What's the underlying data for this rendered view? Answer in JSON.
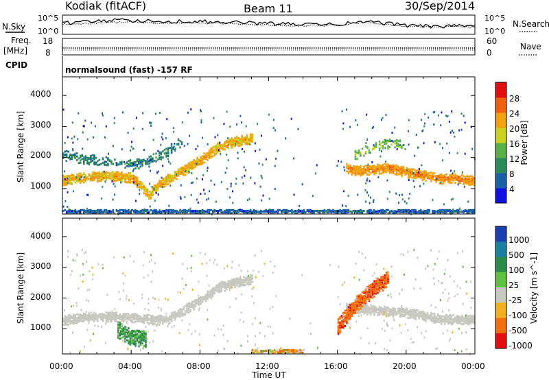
{
  "header": {
    "station": "Kodiak (fitACF)",
    "beam": "Beam 11",
    "date": "30/Sep/2014"
  },
  "summary_panels": {
    "nsky_label": "N.Sky",
    "nsearch_label": "N.Search",
    "noise_ticks": [
      "10^5",
      "10^0"
    ],
    "freq_label_1": "Freq.",
    "freq_label_2": "[MHz]",
    "freq_ticks": [
      "18",
      "8"
    ],
    "nave_label": "Nave",
    "nave_ticks": [
      "60",
      "0"
    ],
    "cpid_label": "CPID",
    "cpid_value": "normalsound (fast) -157 RF"
  },
  "axes": {
    "xlabel": "Time UT",
    "x_ticks": [
      "00:00",
      "04:00",
      "08:00",
      "12:00",
      "16:00",
      "20:00",
      "00:00"
    ],
    "ylabel": "Slant Range [km]",
    "y_ticks": [
      "1000",
      "2000",
      "3000",
      "4000"
    ]
  },
  "colorbars": {
    "power": {
      "label": "Power [dB]",
      "ticks": [
        "4",
        "8",
        "12",
        "16",
        "20",
        "24",
        "28"
      ],
      "colors": [
        "#1010e0",
        "#1a5fa8",
        "#2a8a5a",
        "#58b048",
        "#c8d020",
        "#f0a010",
        "#f06010",
        "#e01010"
      ]
    },
    "velocity": {
      "label": "Velocity [m s^-1]",
      "ticks": [
        "1000",
        "500",
        "100",
        "25",
        "-25",
        "-100",
        "-500",
        "-1000"
      ],
      "colors": [
        "#1a3fb0",
        "#1a7fa0",
        "#2a8a4a",
        "#60c040",
        "#c8c8c0",
        "#f0b020",
        "#f07010",
        "#e01010"
      ]
    }
  },
  "chart_data": [
    {
      "type": "line",
      "title": "Kodiak (fitACF) Beam 11 30/Sep/2014",
      "name": "noise",
      "x": [
        0,
        2,
        4,
        6,
        8,
        10,
        12,
        14,
        16,
        17,
        18,
        20,
        22,
        24
      ],
      "series": [
        {
          "name": "N.Sky",
          "values": [
            3.0,
            3.6,
            3.8,
            3.5,
            3.4,
            3.2,
            2.8,
            2.6,
            2.5,
            3.2,
            3.4,
            2.2,
            2.0,
            2.0
          ]
        },
        {
          "name": "N.Search",
          "values": [
            2.6,
            3.0,
            3.3,
            3.0,
            3.0,
            2.8,
            2.4,
            2.2,
            2.3,
            3.0,
            3.0,
            2.0,
            1.8,
            1.8
          ]
        }
      ],
      "xlim": [
        0,
        24
      ],
      "ylim": [
        0,
        5
      ]
    },
    {
      "type": "line",
      "name": "frequency-nave",
      "x": [
        0,
        24
      ],
      "series": [
        {
          "name": "Freq.",
          "values": [
            10.5,
            10.5
          ]
        },
        {
          "name": "Nave",
          "values": [
            12,
            12
          ]
        }
      ]
    },
    {
      "type": "heatmap",
      "name": "power",
      "xlabel": "Time UT",
      "ylabel": "Slant Range [km]",
      "xlim": [
        0,
        24
      ],
      "ylim": [
        180,
        4600
      ],
      "zlabel": "Power [dB]",
      "zlim": [
        0,
        30
      ],
      "features": [
        {
          "name": "main-band",
          "x": [
            0,
            1,
            2,
            3,
            4,
            4.5,
            5,
            5.5,
            6,
            7,
            8,
            9,
            10,
            11
          ],
          "y": [
            1300,
            1380,
            1420,
            1430,
            1380,
            1150,
            820,
            1100,
            1300,
            1600,
            1950,
            2350,
            2550,
            2650
          ],
          "value": 20
        },
        {
          "name": "upper-band",
          "x": [
            0,
            1,
            2,
            3,
            4,
            5,
            6,
            7
          ],
          "y": [
            2150,
            2000,
            1950,
            1850,
            1800,
            1900,
            2200,
            2600
          ],
          "value": 8
        },
        {
          "name": "morning-band",
          "x": [
            16.5,
            17,
            18,
            19,
            20,
            21,
            22,
            23,
            24
          ],
          "y": [
            1700,
            1600,
            1650,
            1700,
            1550,
            1450,
            1350,
            1350,
            1300
          ],
          "value": 22
        },
        {
          "name": "morning-upper",
          "x": [
            17,
            18,
            19,
            20
          ],
          "y": [
            2100,
            2350,
            2500,
            2400
          ],
          "value": 14
        },
        {
          "name": "ground-scatter-low",
          "x": [
            0,
            24
          ],
          "y": [
            300,
            300
          ],
          "value": 5
        }
      ]
    },
    {
      "type": "heatmap",
      "name": "velocity",
      "xlabel": "Time UT",
      "ylabel": "Slant Range [km]",
      "xlim": [
        0,
        24
      ],
      "ylim": [
        180,
        4600
      ],
      "zlabel": "Velocity [m s^-1]",
      "zlim": [
        -1000,
        1000
      ],
      "features": [
        {
          "name": "main-band",
          "x": [
            0,
            1,
            2,
            3,
            4,
            6,
            8,
            9,
            10,
            11
          ],
          "y": [
            1300,
            1380,
            1420,
            1430,
            1380,
            1300,
            1950,
            2350,
            2550,
            2650
          ],
          "value": 0
        },
        {
          "name": "positive-patch",
          "x": [
            3.2,
            4,
            4.8
          ],
          "y": [
            1000,
            750,
            700
          ],
          "value": 150
        },
        {
          "name": "morning-band",
          "x": [
            16.5,
            18,
            20,
            22,
            24
          ],
          "y": [
            1700,
            1650,
            1550,
            1350,
            1300
          ],
          "value": 0
        },
        {
          "name": "negative-patch",
          "x": [
            16,
            17,
            18,
            19
          ],
          "y": [
            1100,
            1800,
            2300,
            2700
          ],
          "value": -400
        },
        {
          "name": "low-ground",
          "x": [
            11,
            14
          ],
          "y": [
            300,
            300
          ],
          "value": -60
        }
      ]
    }
  ]
}
